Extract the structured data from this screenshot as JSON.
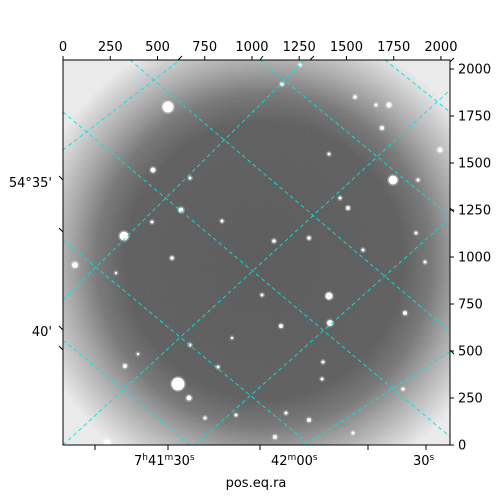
{
  "figure": {
    "xlabel": "pos.eq.ra",
    "pixel_x_ticks": [
      "0",
      "250",
      "500",
      "750",
      "1000",
      "1250",
      "1500",
      "1750",
      "2000"
    ],
    "pixel_y_ticks": [
      "0",
      "250",
      "500",
      "750",
      "1000",
      "1250",
      "1500",
      "1750",
      "2000"
    ],
    "ra_tick_labels": [
      {
        "h": "7",
        "m": "41",
        "s": "30",
        "sup_h": "h",
        "sup_m": "m",
        "sup_s": "s"
      },
      {
        "h": "",
        "m": "42",
        "s": "00",
        "sup_h": "",
        "sup_m": "m",
        "sup_s": "s"
      },
      {
        "h": "",
        "m": "",
        "s": "30",
        "sup_h": "",
        "sup_m": "",
        "sup_s": "s"
      }
    ],
    "dec_tick_labels": [
      "54°35'",
      "40'"
    ],
    "grid_color": "#00e5e5",
    "image_style": "grayscale astronomical frame with vignetting"
  }
}
